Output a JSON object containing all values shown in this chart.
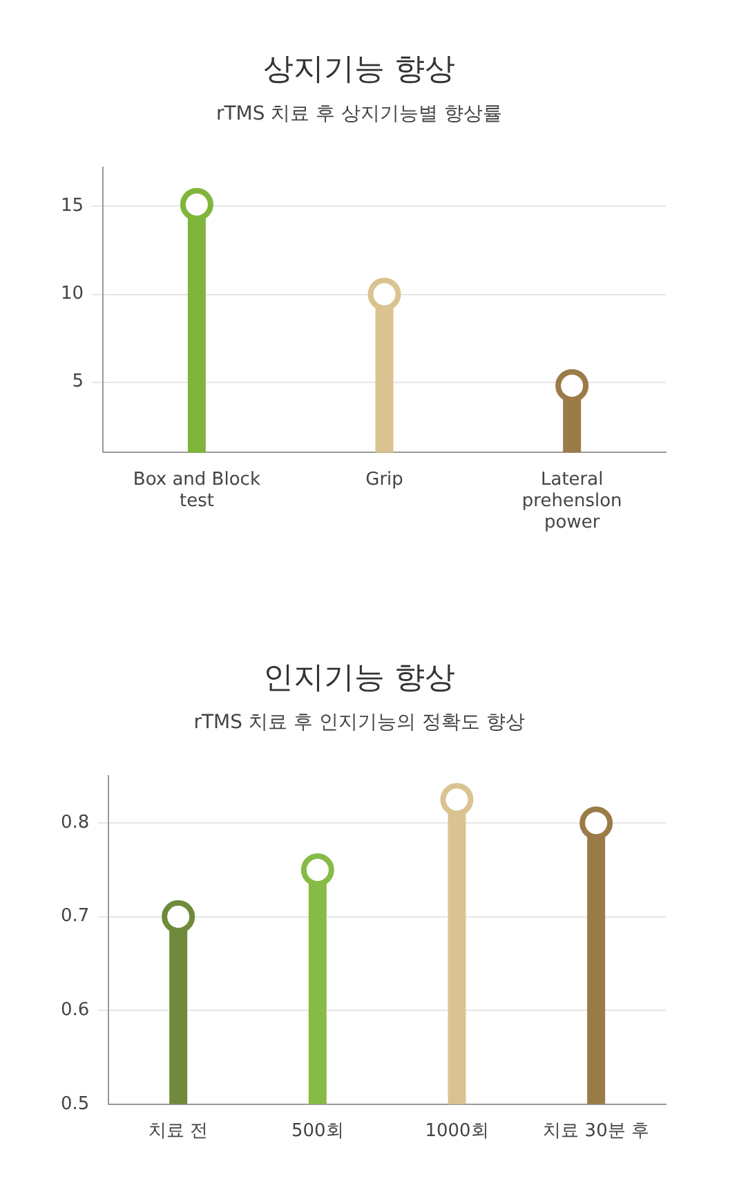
{
  "chart_data": [
    {
      "type": "lollipop",
      "title": "상지기능 향상",
      "subtitle": "rTMS 치료 후 상지기능별 향상률",
      "categories": [
        "Box and Block test",
        "Grip",
        "Lateral prehenslon power"
      ],
      "values": [
        15.1,
        10,
        4.8
      ],
      "colors": [
        "#7fb53a",
        "#dac391",
        "#9b7b46"
      ],
      "ylim": [
        1,
        17.2
      ],
      "yticks": [
        5,
        10,
        15
      ],
      "grid": "y",
      "marker": "circle"
    },
    {
      "type": "lollipop",
      "title": "인지기능 향상",
      "subtitle": "rTMS 치료 후 인지기능의 정확도 향상",
      "categories": [
        "치료 전",
        "500회",
        "1000회",
        "치료 30분 후"
      ],
      "values": [
        0.7,
        0.75,
        0.825,
        0.8
      ],
      "colors": [
        "#6f8a3b",
        "#86bb45",
        "#dac391",
        "#9b7b46"
      ],
      "ylim": [
        0.5,
        0.85
      ],
      "yticks": [
        0.5,
        0.6,
        0.7,
        0.8
      ],
      "grid": "y",
      "marker": "circle"
    }
  ]
}
